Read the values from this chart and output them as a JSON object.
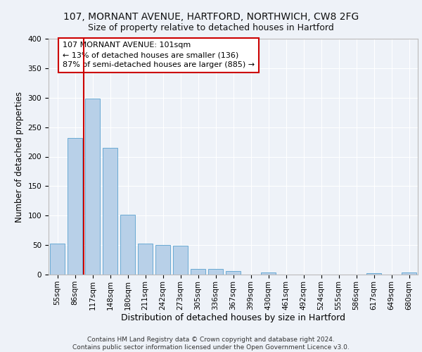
{
  "title": "107, MORNANT AVENUE, HARTFORD, NORTHWICH, CW8 2FG",
  "subtitle": "Size of property relative to detached houses in Hartford",
  "xlabel": "Distribution of detached houses by size in Hartford",
  "ylabel": "Number of detached properties",
  "categories": [
    "55sqm",
    "86sqm",
    "117sqm",
    "148sqm",
    "180sqm",
    "211sqm",
    "242sqm",
    "273sqm",
    "305sqm",
    "336sqm",
    "367sqm",
    "399sqm",
    "430sqm",
    "461sqm",
    "492sqm",
    "524sqm",
    "555sqm",
    "586sqm",
    "617sqm",
    "649sqm",
    "680sqm"
  ],
  "values": [
    53,
    232,
    298,
    215,
    102,
    53,
    50,
    49,
    10,
    10,
    6,
    0,
    4,
    0,
    0,
    0,
    0,
    0,
    2,
    0,
    3
  ],
  "bar_color": "#b8d0e8",
  "bar_edge_color": "#6aaad4",
  "reference_line_x": 1.5,
  "reference_line_color": "#cc0000",
  "annotation_text": "107 MORNANT AVENUE: 101sqm\n← 13% of detached houses are smaller (136)\n87% of semi-detached houses are larger (885) →",
  "annotation_box_color": "#ffffff",
  "annotation_box_edge_color": "#cc0000",
  "ylim": [
    0,
    400
  ],
  "yticks": [
    0,
    50,
    100,
    150,
    200,
    250,
    300,
    350,
    400
  ],
  "title_fontsize": 10,
  "subtitle_fontsize": 9,
  "xlabel_fontsize": 9,
  "ylabel_fontsize": 8.5,
  "tick_fontsize": 7.5,
  "annotation_fontsize": 8,
  "footer_text": "Contains HM Land Registry data © Crown copyright and database right 2024.\nContains public sector information licensed under the Open Government Licence v3.0.",
  "footer_fontsize": 6.5,
  "background_color": "#eef2f8",
  "plot_background_color": "#eef2f8",
  "grid_color": "#ffffff",
  "spine_color": "#bbbbbb"
}
